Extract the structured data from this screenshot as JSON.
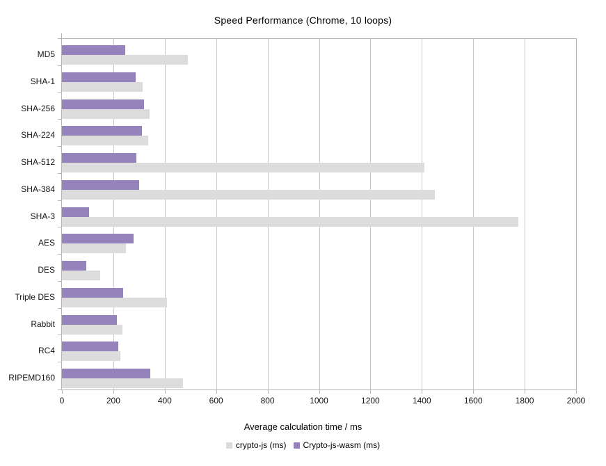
{
  "chart_data": {
    "type": "bar",
    "orientation": "horizontal",
    "title": "Speed Performance (Chrome, 10 loops)",
    "xlabel": "Average calculation time / ms",
    "categories": [
      "MD5",
      "SHA-1",
      "SHA-256",
      "SHA-224",
      "SHA-512",
      "SHA-384",
      "SHA-3",
      "AES",
      "DES",
      "Triple DES",
      "Rabbit",
      "RC4",
      "RIPEMD160"
    ],
    "series": [
      {
        "name": "crypto-js (ms)",
        "color": "#dcdcdc",
        "values": [
          490,
          315,
          340,
          335,
          1410,
          1450,
          1775,
          250,
          150,
          408,
          235,
          228,
          470
        ]
      },
      {
        "name": "Crypto-js-wasm (ms)",
        "color": "#9683bc",
        "values": [
          245,
          286,
          318,
          310,
          289,
          300,
          106,
          279,
          94,
          238,
          213,
          218,
          345
        ]
      }
    ],
    "bar_order_top_to_bottom": [
      "Crypto-js-wasm (ms)",
      "crypto-js (ms)"
    ],
    "xlim": [
      0,
      2000
    ],
    "xticks": [
      0,
      200,
      400,
      600,
      800,
      1000,
      1200,
      1400,
      1600,
      1800,
      2000
    ],
    "grid": true,
    "legend_position": "bottom",
    "colors": {
      "axis": "#b5b5b5",
      "gridline": "#c9c9c9",
      "text": "#141414"
    }
  }
}
